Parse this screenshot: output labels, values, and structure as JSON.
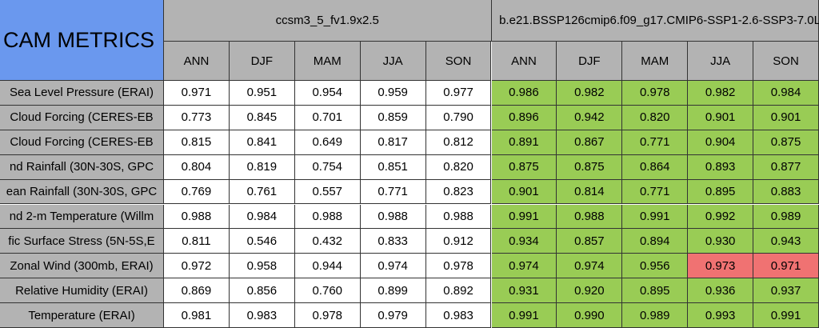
{
  "header": {
    "title": "CAM METRICS",
    "groups": [
      "ccsm3_5_fv1.9x2.5",
      "b.e21.BSSP126cmip6.f09_g17.CMIP6-SSP1-2.6-SSP3-7.0L"
    ],
    "columns": [
      "ANN",
      "DJF",
      "MAM",
      "JJA",
      "SON",
      "ANN",
      "DJF",
      "MAM",
      "JJA",
      "SON"
    ]
  },
  "table": {
    "rows": [
      {
        "label": "Sea Level Pressure (ERAI)",
        "cells": [
          "0.971",
          "0.951",
          "0.954",
          "0.959",
          "0.977",
          "0.986",
          "0.982",
          "0.978",
          "0.982",
          "0.984"
        ]
      },
      {
        "label": "Cloud Forcing (CERES-EB",
        "cells": [
          "0.773",
          "0.845",
          "0.701",
          "0.859",
          "0.790",
          "0.896",
          "0.942",
          "0.820",
          "0.901",
          "0.901"
        ]
      },
      {
        "label": "Cloud Forcing (CERES-EB",
        "cells": [
          "0.815",
          "0.841",
          "0.649",
          "0.817",
          "0.812",
          "0.891",
          "0.867",
          "0.771",
          "0.904",
          "0.875"
        ]
      },
      {
        "label": "nd Rainfall (30N-30S, GPC",
        "cells": [
          "0.804",
          "0.819",
          "0.754",
          "0.851",
          "0.820",
          "0.875",
          "0.875",
          "0.864",
          "0.893",
          "0.877"
        ]
      },
      {
        "label": "ean Rainfall (30N-30S, GPC",
        "cells": [
          "0.769",
          "0.761",
          "0.557",
          "0.771",
          "0.823",
          "0.901",
          "0.814",
          "0.771",
          "0.895",
          "0.883"
        ]
      },
      {
        "label": "nd 2-m Temperature (Willm",
        "cells": [
          "0.988",
          "0.984",
          "0.988",
          "0.988",
          "0.988",
          "0.991",
          "0.988",
          "0.991",
          "0.992",
          "0.989"
        ]
      },
      {
        "label": "fic Surface Stress (5N-5S,E",
        "cells": [
          "0.811",
          "0.546",
          "0.432",
          "0.833",
          "0.912",
          "0.934",
          "0.857",
          "0.894",
          "0.930",
          "0.943"
        ]
      },
      {
        "label": "Zonal Wind (300mb, ERAI)",
        "cells": [
          "0.972",
          "0.958",
          "0.944",
          "0.974",
          "0.978",
          "0.974",
          "0.974",
          "0.956",
          "0.973",
          "0.971"
        ]
      },
      {
        "label": "Relative Humidity (ERAI)",
        "cells": [
          "0.869",
          "0.856",
          "0.760",
          "0.899",
          "0.892",
          "0.931",
          "0.920",
          "0.895",
          "0.936",
          "0.937"
        ]
      },
      {
        "label": "Temperature (ERAI)",
        "cells": [
          "0.981",
          "0.983",
          "0.978",
          "0.979",
          "0.983",
          "0.991",
          "0.990",
          "0.989",
          "0.993",
          "0.991"
        ]
      }
    ]
  }
}
